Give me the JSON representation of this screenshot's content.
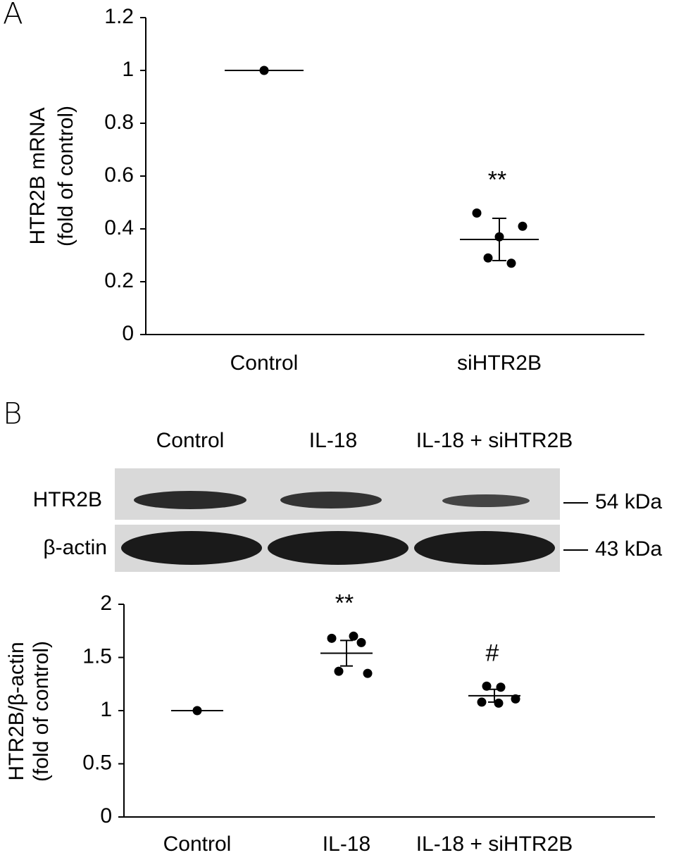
{
  "panel_labels": [
    "A",
    "B"
  ],
  "blot": {
    "lanes": [
      "Control",
      "IL-18",
      "IL-18 + siHTR2B"
    ],
    "rows": [
      {
        "label": "HTR2B",
        "size": "54 kDa"
      },
      {
        "label": "β-actin",
        "size": "43 kDa"
      }
    ]
  },
  "chart_data": [
    {
      "type": "dot",
      "categories": [
        "Control",
        "siHTR2B"
      ],
      "ylabel": [
        "HTR2B mRNA",
        "(fold of control)"
      ],
      "ylim": [
        0,
        1.2
      ],
      "yticks": [
        0,
        0.2,
        0.4,
        0.6,
        0.8,
        1,
        1.2
      ],
      "points": [
        [
          1
        ],
        [
          0.46,
          0.37,
          0.41,
          0.29,
          0.27
        ]
      ],
      "means": [
        1,
        0.36
      ],
      "errors": [
        null,
        0.08
      ],
      "annotations": [
        null,
        "**"
      ],
      "color": "#000000"
    },
    {
      "type": "dot",
      "categories": [
        "Control",
        "IL-18",
        "IL-18 + siHTR2B"
      ],
      "ylabel": [
        "HTR2B/β-actin",
        "(fold of control)"
      ],
      "ylim": [
        0,
        2
      ],
      "yticks": [
        0,
        0.5,
        1,
        1.5,
        2
      ],
      "points": [
        [
          1
        ],
        [
          1.68,
          1.7,
          1.64,
          1.37,
          1.35
        ],
        [
          1.23,
          1.22,
          1.08,
          1.07,
          1.11
        ]
      ],
      "means": [
        1,
        1.54,
        1.14
      ],
      "errors": [
        null,
        0.12,
        0.06
      ],
      "annotations": [
        null,
        "**",
        "#"
      ],
      "color": "#000000"
    }
  ]
}
